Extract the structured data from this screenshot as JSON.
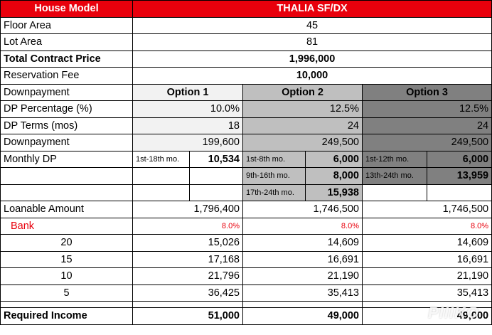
{
  "header": {
    "label": "House Model",
    "model": "THALIA SF/DX"
  },
  "floor_area": {
    "label": "Floor Area",
    "value": "45"
  },
  "lot_area": {
    "label": "Lot Area",
    "value": "81"
  },
  "tcp": {
    "label": "Total Contract Price",
    "value": "1,996,000"
  },
  "reservation": {
    "label": "Reservation Fee",
    "value": "10,000"
  },
  "options_header": {
    "label": "Downpayment",
    "opt1": "Option 1",
    "opt2": "Option 2",
    "opt3": "Option 3"
  },
  "dp_pct": {
    "label": "DP Percentage (%)",
    "opt1": "10.0%",
    "opt2": "12.5%",
    "opt3": "12.5%"
  },
  "dp_terms": {
    "label": "DP Terms (mos)",
    "opt1": "18",
    "opt2": "24",
    "opt3": "24"
  },
  "dp_amount": {
    "label": "Downpayment",
    "opt1": "199,600",
    "opt2": "249,500",
    "opt3": "249,500"
  },
  "monthly_dp": {
    "label": "Monthly DP",
    "opt1": [
      {
        "period": "1st-18th mo.",
        "amount": "10,534"
      }
    ],
    "opt2": [
      {
        "period": "1st-8th mo.",
        "amount": "6,000"
      },
      {
        "period": "9th-16th mo.",
        "amount": "8,000"
      },
      {
        "period": "17th-24th mo.",
        "amount": "15,938"
      }
    ],
    "opt3": [
      {
        "period": "1st-12th mo.",
        "amount": "6,000"
      },
      {
        "period": "13th-24th mo.",
        "amount": "13,959"
      }
    ]
  },
  "loanable": {
    "label": "Loanable Amount",
    "opt1": "1,796,400",
    "opt2": "1,746,500",
    "opt3": "1,746,500"
  },
  "bank": {
    "label": "Bank",
    "opt1": "8.0%",
    "opt2": "8.0%",
    "opt3": "8.0%"
  },
  "terms": [
    {
      "years": "20",
      "opt1": "15,026",
      "opt2": "14,609",
      "opt3": "14,609"
    },
    {
      "years": "15",
      "opt1": "17,168",
      "opt2": "16,691",
      "opt3": "16,691"
    },
    {
      "years": "10",
      "opt1": "21,796",
      "opt2": "21,190",
      "opt3": "21,190"
    },
    {
      "years": "5",
      "opt1": "36,425",
      "opt2": "35,413",
      "opt3": "35,413"
    }
  ],
  "required_income": {
    "label": "Required Income",
    "opt1": "51,000",
    "opt2": "49,000",
    "opt3": "49,000"
  },
  "watermark": "PIIIKO"
}
